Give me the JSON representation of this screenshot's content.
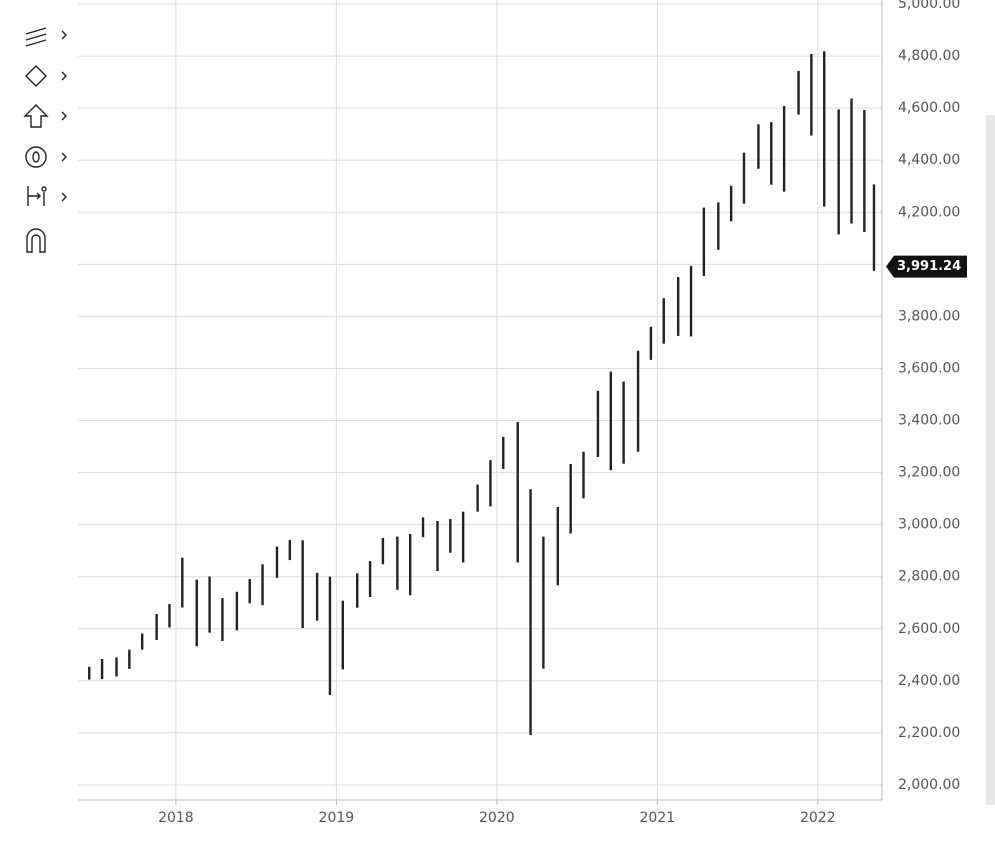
{
  "chart_data": {
    "type": "ohlc",
    "x": [
      2017.46,
      2017.54,
      2017.63,
      2017.71,
      2017.79,
      2017.88,
      2017.96,
      2018.04,
      2018.13,
      2018.21,
      2018.29,
      2018.38,
      2018.46,
      2018.54,
      2018.63,
      2018.71,
      2018.79,
      2018.88,
      2018.96,
      2019.04,
      2019.13,
      2019.21,
      2019.29,
      2019.38,
      2019.46,
      2019.54,
      2019.63,
      2019.71,
      2019.79,
      2019.88,
      2019.96,
      2020.04,
      2020.13,
      2020.21,
      2020.29,
      2020.38,
      2020.46,
      2020.54,
      2020.63,
      2020.71,
      2020.79,
      2020.88,
      2020.96,
      2021.04,
      2021.13,
      2021.21,
      2021.29,
      2021.38,
      2021.46,
      2021.54,
      2021.63,
      2021.71,
      2021.79,
      2021.88,
      2021.96,
      2022.04,
      2022.13,
      2022.21,
      2022.29,
      2022.35
    ],
    "high": [
      2454,
      2484,
      2490,
      2520,
      2582,
      2657,
      2695,
      2873,
      2789,
      2801,
      2718,
      2742,
      2791,
      2848,
      2916,
      2941,
      2940,
      2815,
      2800,
      2708,
      2813,
      2860,
      2949,
      2954,
      2964,
      3028,
      3014,
      3022,
      3050,
      3154,
      3248,
      3337,
      3394,
      3136,
      2954,
      3068,
      3233,
      3280,
      3514,
      3588,
      3550,
      3668,
      3760,
      3870,
      3951,
      3994,
      4218,
      4238,
      4302,
      4429,
      4538,
      4546,
      4608,
      4743,
      4808,
      4818,
      4595,
      4637,
      4593,
      4307
    ],
    "low": [
      2405,
      2407,
      2417,
      2446,
      2520,
      2557,
      2605,
      2682,
      2533,
      2585,
      2553,
      2594,
      2698,
      2691,
      2796,
      2864,
      2603,
      2631,
      2346,
      2444,
      2681,
      2722,
      2848,
      2750,
      2729,
      2952,
      2822,
      2892,
      2855,
      3050,
      3070,
      3214,
      2855,
      2192,
      2447,
      2767,
      2966,
      3101,
      3260,
      3209,
      3234,
      3280,
      3633,
      3695,
      3725,
      3723,
      3955,
      4056,
      4165,
      4233,
      4367,
      4306,
      4279,
      4575,
      4495,
      4222,
      4115,
      4157,
      4124,
      3975
    ],
    "color": "#222222",
    "xlim": [
      2017.39,
      2022.4
    ],
    "xticks": [
      2018,
      2019,
      2020,
      2021,
      2022
    ],
    "ylim": [
      2000,
      5000
    ],
    "yticks": [
      {
        "value": 2000,
        "label": "2,000.00"
      },
      {
        "value": 2200,
        "label": "2,200.00"
      },
      {
        "value": 2400,
        "label": "2,400.00"
      },
      {
        "value": 2600,
        "label": "2,600.00"
      },
      {
        "value": 2800,
        "label": "2,800.00"
      },
      {
        "value": 3000,
        "label": "3,000.00"
      },
      {
        "value": 3200,
        "label": "3,200.00"
      },
      {
        "value": 3400,
        "label": "3,400.00"
      },
      {
        "value": 3600,
        "label": "3,600.00"
      },
      {
        "value": 3800,
        "label": "3,800.00"
      },
      {
        "value": 4000,
        "label": "4,000.00"
      },
      {
        "value": 4200,
        "label": "4,200.00"
      },
      {
        "value": 4400,
        "label": "4,400.00"
      },
      {
        "value": 4600,
        "label": "4,600.00"
      },
      {
        "value": 4800,
        "label": "4,800.00"
      },
      {
        "value": 5000,
        "label": "5,000.00"
      }
    ],
    "grid": true,
    "last_price": 3991.24,
    "last_price_label": "3,991.24"
  }
}
